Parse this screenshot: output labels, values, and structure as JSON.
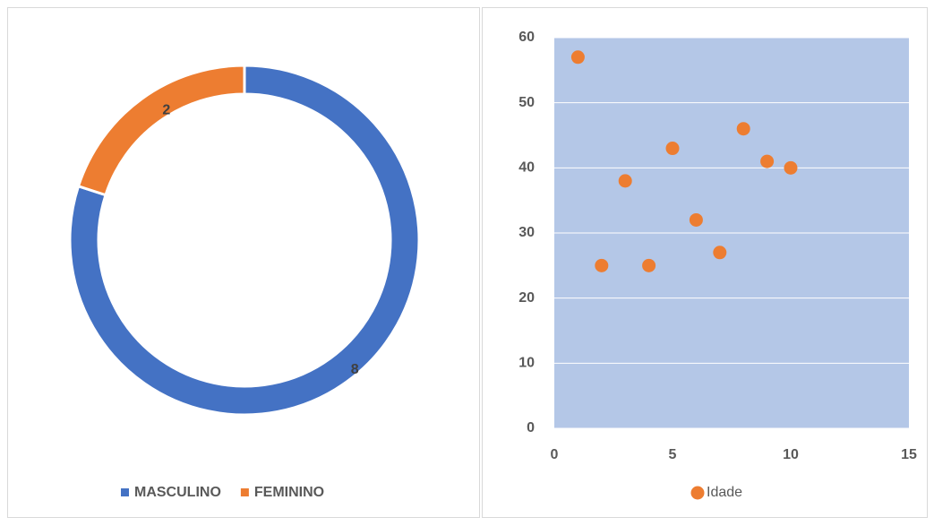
{
  "chart_data": [
    {
      "type": "pie",
      "donut": true,
      "categories": [
        "MASCULINO",
        "FEMININO"
      ],
      "values": [
        8,
        2
      ],
      "colors": [
        "#4472c4",
        "#ed7d31"
      ],
      "legend": "bottom"
    },
    {
      "type": "scatter",
      "x": [
        1,
        2,
        3,
        4,
        5,
        6,
        7,
        8,
        9,
        10
      ],
      "series": [
        {
          "name": "Idade",
          "color": "#ed7d31",
          "values": [
            57,
            25,
            38,
            25,
            43,
            32,
            27,
            46,
            41,
            40
          ]
        }
      ],
      "xlim": [
        0,
        15
      ],
      "xticks": [
        0,
        5,
        10,
        15
      ],
      "ylim": [
        0,
        60
      ],
      "yticks": [
        0,
        10,
        20,
        30,
        40,
        50,
        60
      ],
      "grid": true,
      "legend": "bottom"
    }
  ]
}
